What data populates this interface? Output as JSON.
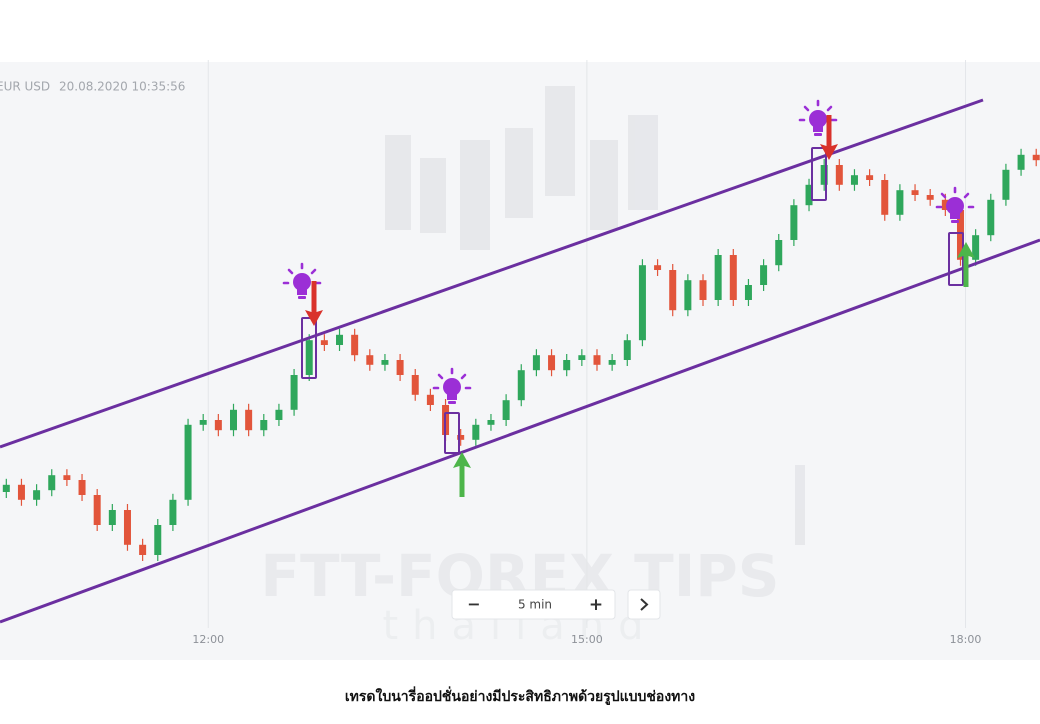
{
  "header": {
    "symbol": "EUR USD",
    "timestamp": "20.08.2020 10:35:56"
  },
  "watermark": {
    "brand": "FTT-FOREX TIPS",
    "region": "thailand"
  },
  "controls": {
    "zoom_out": "−",
    "interval": "5 min",
    "zoom_in": "+"
  },
  "caption": "เทรดใบนารี่ออปชั่นอย่างมีประสิทธิภาพด้วยรูปแบบช่องทาง",
  "chart_data": {
    "type": "candlestick",
    "x": [
      10.4,
      10.52,
      10.64,
      10.76,
      10.88,
      11,
      11.12,
      11.24,
      11.36,
      11.48,
      11.6,
      11.72,
      11.84,
      11.96,
      12.08,
      12.2,
      12.32,
      12.44,
      12.56,
      12.68,
      12.8,
      12.92,
      13.04,
      13.16,
      13.28,
      13.4,
      13.52,
      13.64,
      13.76,
      13.88,
      14,
      14.12,
      14.24,
      14.36,
      14.48,
      14.6,
      14.72,
      14.84,
      14.96,
      15.08,
      15.2,
      15.32,
      15.44,
      15.56,
      15.68,
      15.8,
      15.92,
      16.04,
      16.16,
      16.28,
      16.4,
      16.52,
      16.64,
      16.76,
      16.88,
      17,
      17.12,
      17.24,
      17.36,
      17.48,
      17.6,
      17.72,
      17.84,
      17.96,
      18.08,
      18.2,
      18.32,
      18.44,
      18.56
    ],
    "open": [
      28,
      29.2,
      26.7,
      28.3,
      30.8,
      30,
      27.5,
      22.5,
      25,
      19.2,
      17.5,
      22.5,
      26.7,
      39.2,
      40,
      38.3,
      41.7,
      38.3,
      40,
      41.7,
      47.5,
      53.3,
      52.5,
      54.2,
      50.8,
      49.2,
      50,
      47.5,
      44.2,
      42.5,
      37.5,
      36.7,
      39.2,
      40,
      43.3,
      48.3,
      50.8,
      48.3,
      50,
      50.8,
      49.2,
      50,
      53.3,
      65.8,
      65,
      58.3,
      63.3,
      60,
      67.5,
      60,
      62.5,
      65.8,
      70,
      75.8,
      79.2,
      82.5,
      79.2,
      80.8,
      80,
      74.2,
      78.3,
      77.5,
      76.7,
      75,
      66.7,
      70.8,
      76.7,
      81.7,
      84.2
    ],
    "high": [
      30.2,
      30.2,
      29.3,
      31.8,
      31.8,
      31,
      28.5,
      26,
      26,
      20.2,
      23.5,
      27.7,
      40.2,
      41,
      41,
      42.7,
      42.7,
      41,
      42.7,
      48.5,
      54.3,
      54.3,
      55.2,
      55.2,
      51.8,
      51,
      51,
      48.5,
      45.2,
      43.5,
      38.5,
      40.2,
      41,
      44.3,
      49.3,
      51.8,
      51.8,
      51,
      51.8,
      51.8,
      51,
      54.3,
      66.8,
      66.8,
      66,
      64.3,
      64.3,
      68.5,
      68.5,
      63.5,
      66.8,
      71,
      76.8,
      80.2,
      83.5,
      83.5,
      81.8,
      81.8,
      81,
      79.3,
      79.3,
      78.5,
      77.7,
      76,
      71.8,
      77.7,
      82.7,
      85.2,
      85.2
    ],
    "low": [
      27,
      25.7,
      25.7,
      27.3,
      29,
      26.5,
      21.5,
      21.5,
      18.2,
      16.5,
      16.5,
      21.5,
      25.7,
      38.2,
      37.3,
      37.3,
      37.3,
      37.3,
      39,
      40.7,
      46.5,
      51.5,
      51.5,
      49.8,
      48.2,
      48.2,
      46.5,
      43.2,
      41.5,
      36.5,
      35.7,
      35.7,
      38.2,
      39,
      42.3,
      47.3,
      47.3,
      47.3,
      49,
      48.2,
      48.2,
      49,
      52.3,
      64,
      57.3,
      57.3,
      59,
      59,
      59,
      59,
      61.5,
      64.8,
      69,
      74.8,
      78.2,
      78.2,
      78.2,
      79,
      73.2,
      73.2,
      76.5,
      75.7,
      74,
      65.7,
      65.7,
      69.8,
      75.7,
      80.7,
      82.3
    ],
    "close": [
      29.2,
      26.7,
      28.3,
      30.8,
      30,
      27.5,
      22.5,
      25,
      19.2,
      17.5,
      22.5,
      26.7,
      39.2,
      40,
      38.3,
      41.7,
      38.3,
      40,
      41.7,
      47.5,
      53.3,
      52.5,
      54.2,
      50.8,
      49.2,
      50,
      47.5,
      44.2,
      42.5,
      37.5,
      36.7,
      39.2,
      40,
      43.3,
      48.3,
      50.8,
      48.3,
      50,
      50.8,
      49.2,
      50,
      53.3,
      65.8,
      65,
      58.3,
      63.3,
      60,
      67.5,
      60,
      62.5,
      65.8,
      70,
      75.8,
      79.2,
      82.5,
      79.2,
      80.8,
      80,
      74.2,
      78.3,
      77.5,
      76.7,
      75,
      66.7,
      70.8,
      76.7,
      81.7,
      84.2,
      83.3
    ],
    "colors": {
      "up": "#2fa75c",
      "down": "#e2553b"
    },
    "xlim": [
      10.35,
      18.59
    ],
    "xticks": [
      {
        "value": 12,
        "label": "12:00"
      },
      {
        "value": 15,
        "label": "15:00"
      },
      {
        "value": 18,
        "label": "18:00"
      }
    ],
    "ylim": [
      0,
      100
    ],
    "grid": true
  }
}
